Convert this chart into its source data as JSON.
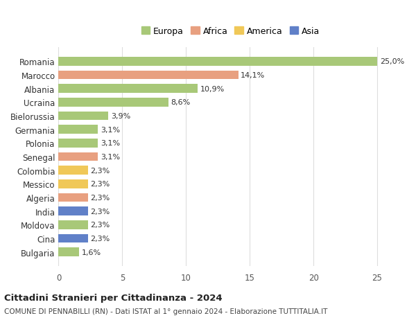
{
  "countries": [
    "Romania",
    "Marocco",
    "Albania",
    "Ucraina",
    "Bielorussia",
    "Germania",
    "Polonia",
    "Senegal",
    "Colombia",
    "Messico",
    "Algeria",
    "India",
    "Moldova",
    "Cina",
    "Bulgaria"
  ],
  "values": [
    25.0,
    14.1,
    10.9,
    8.6,
    3.9,
    3.1,
    3.1,
    3.1,
    2.3,
    2.3,
    2.3,
    2.3,
    2.3,
    2.3,
    1.6
  ],
  "labels": [
    "25,0%",
    "14,1%",
    "10,9%",
    "8,6%",
    "3,9%",
    "3,1%",
    "3,1%",
    "3,1%",
    "2,3%",
    "2,3%",
    "2,3%",
    "2,3%",
    "2,3%",
    "2,3%",
    "1,6%"
  ],
  "continents": [
    "Europa",
    "Africa",
    "Europa",
    "Europa",
    "Europa",
    "Europa",
    "Europa",
    "Africa",
    "America",
    "America",
    "Africa",
    "Asia",
    "Europa",
    "Asia",
    "Europa"
  ],
  "colors": {
    "Europa": "#a8c878",
    "Africa": "#e8a080",
    "America": "#f0c858",
    "Asia": "#6080c8"
  },
  "legend_order": [
    "Europa",
    "Africa",
    "America",
    "Asia"
  ],
  "title1": "Cittadini Stranieri per Cittadinanza - 2024",
  "title2": "COMUNE DI PENNABILLI (RN) - Dati ISTAT al 1° gennaio 2024 - Elaborazione TUTTITALIA.IT",
  "xlim": [
    0,
    27
  ],
  "xticks": [
    0,
    5,
    10,
    15,
    20,
    25
  ],
  "background_color": "#ffffff",
  "grid_color": "#dddddd"
}
